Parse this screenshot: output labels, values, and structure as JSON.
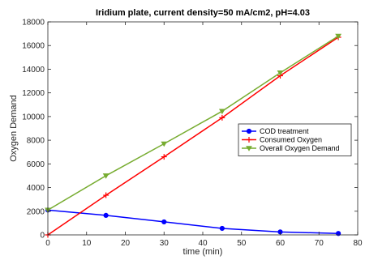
{
  "chart_data": {
    "type": "line",
    "title": "Iridium plate, current density=50 mA/cm2, pH=4.03",
    "xlabel": "time (min)",
    "ylabel": "Oxygen Demand",
    "xlim": [
      0,
      80
    ],
    "ylim": [
      0,
      18000
    ],
    "xticks": [
      0,
      10,
      20,
      30,
      40,
      50,
      60,
      70,
      80
    ],
    "yticks": [
      0,
      2000,
      4000,
      6000,
      8000,
      10000,
      12000,
      14000,
      16000,
      18000
    ],
    "grid": false,
    "legend_position": "center-right",
    "series": [
      {
        "name": "COD treatment",
        "color": "#0000ff",
        "marker": "circle",
        "x": [
          0,
          15,
          30,
          45,
          60,
          75
        ],
        "values": [
          2100,
          1650,
          1100,
          550,
          250,
          120
        ]
      },
      {
        "name": "Consumed Oxygen",
        "color": "#ff0000",
        "marker": "plus",
        "x": [
          0,
          15,
          30,
          45,
          60,
          75
        ],
        "values": [
          0,
          3350,
          6600,
          9900,
          13450,
          16700
        ]
      },
      {
        "name": "Overall Oxygen Demand",
        "color": "#77ac30",
        "marker": "triangle-down",
        "x": [
          0,
          15,
          30,
          45,
          60,
          75
        ],
        "values": [
          2100,
          5000,
          7700,
          10450,
          13700,
          16800
        ]
      }
    ]
  }
}
